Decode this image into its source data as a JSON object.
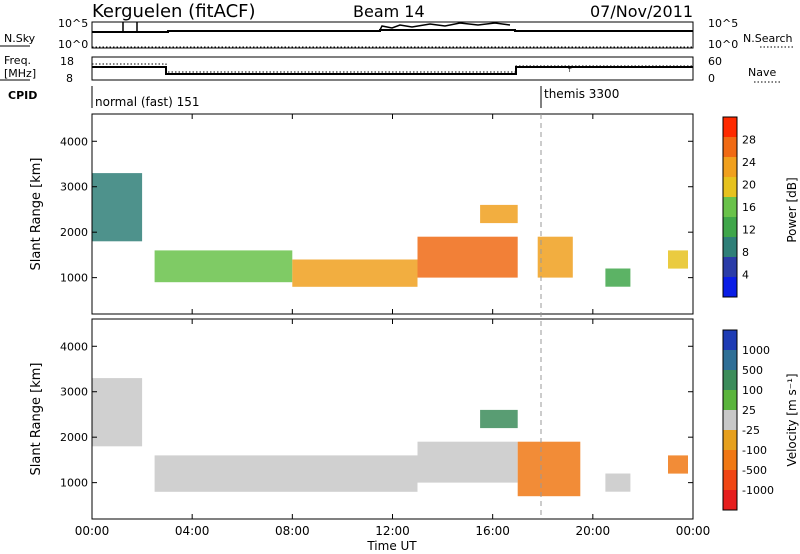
{
  "header": {
    "station": "Kerguelen (fitACF)",
    "beam": "Beam 14",
    "date": "07/Nov/2011"
  },
  "nsky_panel": {
    "label": "N.Sky",
    "left_ticks": [
      "10^5",
      "10^0"
    ],
    "right_ticks": [
      "10^5",
      "10^0"
    ],
    "right_label": "N.Search"
  },
  "freq_panel": {
    "label_line1": "Freq.",
    "label_line2": "[MHz]",
    "left_ticks": [
      "18",
      "8"
    ],
    "right_ticks": [
      "60",
      "0"
    ],
    "right_label": "Nave"
  },
  "cpid": {
    "label": "CPID",
    "modes": [
      {
        "name": "normal (fast) 151",
        "start_hour": 0
      },
      {
        "name": "themis 3300",
        "start_hour": 18
      }
    ]
  },
  "power_colorbar": {
    "title": "Power [dB]",
    "ticks": [
      "4",
      "8",
      "12",
      "16",
      "20",
      "24",
      "28"
    ],
    "colors": [
      "#0a1ee6",
      "#2a3ca8",
      "#2f7f78",
      "#3fa64a",
      "#69c24a",
      "#e6c21e",
      "#f0a01e",
      "#f06a14",
      "#ff2a00"
    ]
  },
  "velocity_colorbar": {
    "title": "Velocity [m s⁻¹]",
    "ticks": [
      "1000",
      "500",
      "100",
      "25",
      "-25",
      "-100",
      "-500",
      "-1000"
    ],
    "colors": [
      "#1e3cb4",
      "#2f6f96",
      "#3c8c5a",
      "#5ab43c",
      "#c8c8c8",
      "#e6a01e",
      "#f07814",
      "#f04614",
      "#e61e1e"
    ]
  },
  "chart_data": [
    {
      "type": "heatmap",
      "panel": "power",
      "ylabel": "Slant Range [km]",
      "yticks": [
        1000,
        2000,
        3000,
        4000
      ],
      "ylim": [
        200,
        4600
      ],
      "xlim": [
        0,
        24
      ],
      "color_scale": "Power [dB]",
      "bands": [
        {
          "start_hour": 0.0,
          "end_hour": 2.0,
          "range_min_km": 1800,
          "range_max_km": 3300,
          "value": 8
        },
        {
          "start_hour": 2.5,
          "end_hour": 8.0,
          "range_min_km": 900,
          "range_max_km": 1600,
          "value": 16
        },
        {
          "start_hour": 8.0,
          "end_hour": 13.0,
          "range_min_km": 800,
          "range_max_km": 1400,
          "value": 24
        },
        {
          "start_hour": 13.0,
          "end_hour": 17.0,
          "range_min_km": 1000,
          "range_max_km": 1900,
          "value": 26
        },
        {
          "start_hour": 15.5,
          "end_hour": 17.0,
          "range_min_km": 2200,
          "range_max_km": 2600,
          "value": 22
        },
        {
          "start_hour": 17.8,
          "end_hour": 19.2,
          "range_min_km": 1000,
          "range_max_km": 1900,
          "value": 24
        },
        {
          "start_hour": 20.5,
          "end_hour": 21.5,
          "range_min_km": 800,
          "range_max_km": 1200,
          "value": 12
        },
        {
          "start_hour": 23.0,
          "end_hour": 23.8,
          "range_min_km": 1200,
          "range_max_km": 1600,
          "value": 18
        }
      ]
    },
    {
      "type": "heatmap",
      "panel": "velocity",
      "xlabel": "Time UT",
      "ylabel": "Slant Range [km]",
      "xticks": [
        "00:00",
        "04:00",
        "08:00",
        "12:00",
        "16:00",
        "20:00",
        "00:00"
      ],
      "yticks": [
        1000,
        2000,
        3000,
        4000
      ],
      "ylim": [
        200,
        4600
      ],
      "xlim": [
        0,
        24
      ],
      "color_scale": "Velocity [m s^-1]",
      "bands": [
        {
          "start_hour": 0.0,
          "end_hour": 2.0,
          "range_min_km": 1800,
          "range_max_km": 3300,
          "value": 0
        },
        {
          "start_hour": 2.5,
          "end_hour": 13.0,
          "range_min_km": 800,
          "range_max_km": 1600,
          "value": 0
        },
        {
          "start_hour": 13.0,
          "end_hour": 17.0,
          "range_min_km": 1000,
          "range_max_km": 1900,
          "value": 0
        },
        {
          "start_hour": 15.5,
          "end_hour": 17.0,
          "range_min_km": 2200,
          "range_max_km": 2600,
          "value": 150
        },
        {
          "start_hour": 17.0,
          "end_hour": 19.5,
          "range_min_km": 700,
          "range_max_km": 1900,
          "value": -200
        },
        {
          "start_hour": 20.5,
          "end_hour": 21.5,
          "range_min_km": 800,
          "range_max_km": 1200,
          "value": 0
        },
        {
          "start_hour": 23.0,
          "end_hour": 23.8,
          "range_min_km": 1200,
          "range_max_km": 1600,
          "value": -150
        }
      ]
    }
  ]
}
